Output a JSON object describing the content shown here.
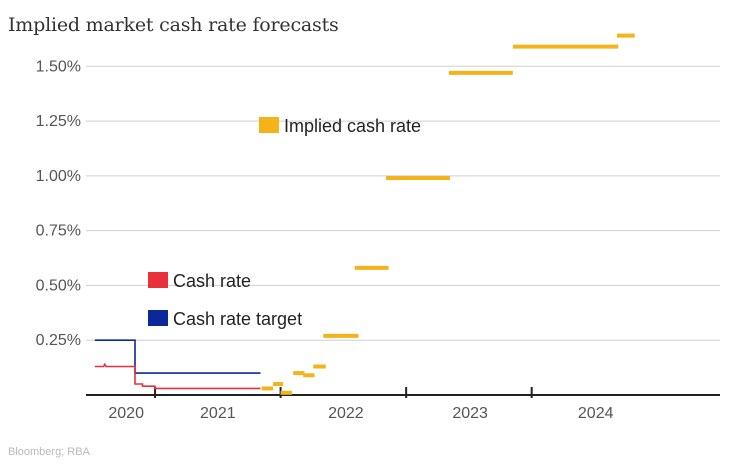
{
  "title": "Implied market cash rate forecasts",
  "source": "Bloomberg; RBA",
  "colors": {
    "implied": "#f5b31a",
    "cash_rate": "#e8313a",
    "target": "#0b2899",
    "grid": "#cfcfcf",
    "axis": "#222222"
  },
  "chart_data": {
    "type": "line",
    "title": "Implied market cash rate forecasts",
    "xlabel": "",
    "ylabel": "",
    "xlim": [
      2019.93,
      2024.98
    ],
    "ylim": [
      0,
      1.62
    ],
    "y_ticks": [
      {
        "value": 0.25,
        "label": "0.25%"
      },
      {
        "value": 0.5,
        "label": "0.50%"
      },
      {
        "value": 0.75,
        "label": "0.75%"
      },
      {
        "value": 1.0,
        "label": "1.00%"
      },
      {
        "value": 1.25,
        "label": "1.25%"
      },
      {
        "value": 1.5,
        "label": "1.50%"
      }
    ],
    "x_ticks": [
      {
        "label": "2020",
        "position": 2020.25,
        "tick_at": null
      },
      {
        "label": "2021",
        "position": 2020.98,
        "tick_at": 2020.48
      },
      {
        "label": "2022",
        "position": 2022.0,
        "tick_at": 2021.48
      },
      {
        "label": "2023",
        "position": 2022.99,
        "tick_at": 2022.48
      },
      {
        "label": "2024",
        "position": 2023.99,
        "tick_at": 2023.48
      }
    ],
    "grid": true,
    "legend": [
      {
        "name": "Implied cash rate",
        "color": "#f5b31a"
      },
      {
        "name": "Cash rate",
        "color": "#e8313a"
      },
      {
        "name": "Cash rate target",
        "color": "#0b2899"
      }
    ],
    "series": [
      {
        "name": "Cash rate target",
        "color": "#0b2899",
        "x": [
          2020.0,
          2020.32,
          2020.32,
          2021.32
        ],
        "y": [
          0.25,
          0.25,
          0.1,
          0.1
        ]
      },
      {
        "name": "Cash rate",
        "color": "#e8313a",
        "x": [
          2020.0,
          2020.07,
          2020.08,
          2020.09,
          2020.32,
          2020.32,
          2020.38,
          2020.38,
          2020.48,
          2020.48,
          2021.32
        ],
        "y": [
          0.13,
          0.13,
          0.14,
          0.13,
          0.13,
          0.05,
          0.05,
          0.04,
          0.04,
          0.03,
          0.03
        ]
      }
    ],
    "implied_segments": [
      {
        "x0": 2021.33,
        "x1": 2021.42,
        "y": 0.03
      },
      {
        "x0": 2021.42,
        "x1": 2021.5,
        "y": 0.05
      },
      {
        "x0": 2021.48,
        "x1": 2021.57,
        "y": 0.01
      },
      {
        "x0": 2021.58,
        "x1": 2021.67,
        "y": 0.1
      },
      {
        "x0": 2021.66,
        "x1": 2021.75,
        "y": 0.09
      },
      {
        "x0": 2021.74,
        "x1": 2021.84,
        "y": 0.13
      },
      {
        "x0": 2021.82,
        "x1": 2022.1,
        "y": 0.27
      },
      {
        "x0": 2022.07,
        "x1": 2022.34,
        "y": 0.58
      },
      {
        "x0": 2022.32,
        "x1": 2022.83,
        "y": 0.99
      },
      {
        "x0": 2022.82,
        "x1": 2023.33,
        "y": 1.47
      },
      {
        "x0": 2023.33,
        "x1": 2024.17,
        "y": 1.59
      },
      {
        "x0": 2024.16,
        "x1": 2024.3,
        "y": 1.64
      }
    ]
  }
}
